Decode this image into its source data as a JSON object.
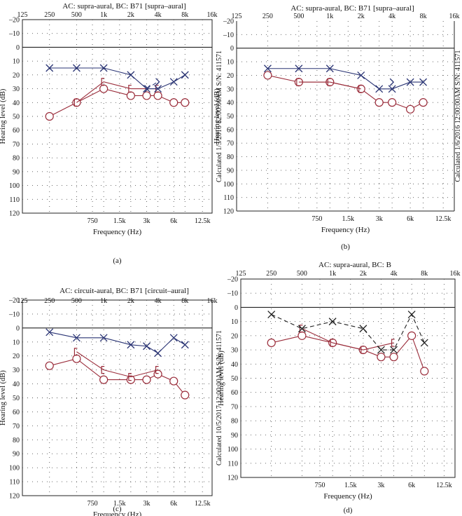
{
  "figure": {
    "colors": {
      "right_ear": "#2a3474",
      "left_ear": "#9a2c3a",
      "frame": "#222222",
      "grid": "#555555"
    }
  },
  "chart_data": [
    {
      "type": "line",
      "panel_label": "(a)",
      "title": "AC: supra-aural, BC: B71 [supra–aural]",
      "xlabel": "Frequency (Hz)",
      "ylabel": "Hearing level (dB)",
      "side_text": "Calculated 1/5/2016 12:00:00AM S/N: 411571",
      "x_scale": "log",
      "xlim": [
        125,
        16000
      ],
      "ylim": [
        -20,
        120
      ],
      "y_inverted": true,
      "top_ticks": [
        "125",
        "250",
        "500",
        "1k",
        "2k",
        "4k",
        "8k",
        "16k"
      ],
      "top_tick_values": [
        125,
        250,
        500,
        1000,
        2000,
        4000,
        8000,
        16000
      ],
      "bottom_ticks": [
        "750",
        "1.5k",
        "3k",
        "6k",
        "12.5k"
      ],
      "bottom_tick_values": [
        750,
        1500,
        3000,
        6000,
        12500
      ],
      "y_ticks": [
        -20,
        -10,
        0,
        10,
        20,
        30,
        40,
        50,
        60,
        70,
        80,
        90,
        100,
        110,
        120
      ],
      "series": [
        {
          "name": "Right air conduction",
          "marker": "circle",
          "dash": false,
          "color": "left_ear",
          "x": [
            250,
            500,
            1000,
            2000,
            3000,
            4000,
            6000,
            8000
          ],
          "y": [
            50,
            40,
            30,
            35,
            35,
            35,
            40,
            40
          ]
        },
        {
          "name": "Right bone conduction",
          "marker": "bracket",
          "dash": false,
          "color": "left_ear",
          "x": [
            500,
            1000,
            2000,
            4000
          ],
          "y": [
            40,
            25,
            30,
            30
          ]
        },
        {
          "name": "Left air conduction",
          "marker": "x",
          "dash": false,
          "color": "right_ear",
          "x": [
            250,
            500,
            1000,
            2000,
            3000,
            4000,
            6000,
            8000
          ],
          "y": [
            15,
            15,
            15,
            20,
            30,
            30,
            25,
            20
          ]
        },
        {
          "name": "Left bone conduction",
          "marker": "gt",
          "dash": true,
          "color": "right_ear",
          "x": [
            3000,
            4000
          ],
          "y": [
            30,
            25
          ]
        }
      ]
    },
    {
      "type": "line",
      "panel_label": "(b)",
      "title": "AC: supra-aural, BC: B71 [supra–aural]",
      "xlabel": "Frequency (Hz)",
      "ylabel": "Hearing level (dB)",
      "side_text": "Calculated 1/6/2016 12:00:00AM S/N: 411571",
      "x_scale": "log",
      "xlim": [
        125,
        16000
      ],
      "ylim": [
        -20,
        120
      ],
      "y_inverted": true,
      "top_ticks": [
        "125",
        "250",
        "500",
        "1k",
        "2k",
        "4k",
        "8k",
        "16k"
      ],
      "top_tick_values": [
        125,
        250,
        500,
        1000,
        2000,
        4000,
        8000,
        16000
      ],
      "bottom_ticks": [
        "750",
        "1.5k",
        "3k",
        "6k",
        "12.5k"
      ],
      "bottom_tick_values": [
        750,
        1500,
        3000,
        6000,
        12500
      ],
      "y_ticks": [
        -20,
        -10,
        0,
        10,
        20,
        30,
        40,
        50,
        60,
        70,
        80,
        90,
        100,
        110,
        120
      ],
      "series": [
        {
          "name": "Right air conduction",
          "marker": "circle",
          "dash": false,
          "color": "left_ear",
          "x": [
            250,
            500,
            1000,
            2000,
            3000,
            4000,
            6000,
            8000
          ],
          "y": [
            20,
            25,
            25,
            30,
            40,
            40,
            45,
            40
          ]
        },
        {
          "name": "Right bone conduction",
          "marker": "bracket",
          "dash": false,
          "color": "left_ear",
          "x": [
            500,
            1000,
            2000
          ],
          "y": [
            25,
            25,
            30
          ]
        },
        {
          "name": "Left air conduction",
          "marker": "x",
          "dash": false,
          "color": "right_ear",
          "x": [
            250,
            500,
            1000,
            2000,
            3000,
            4000,
            6000,
            8000
          ],
          "y": [
            15,
            15,
            15,
            20,
            30,
            30,
            25,
            25
          ]
        },
        {
          "name": "Left bone conduction",
          "marker": "gt",
          "dash": true,
          "color": "right_ear",
          "x": [
            4000
          ],
          "y": [
            25
          ]
        }
      ]
    },
    {
      "type": "line",
      "panel_label": "(c)",
      "title": "AC: circuit-aural, BC: B71 [circuit–aural]",
      "xlabel": "Frequency (Hz)",
      "ylabel": "Hearing level (dB)",
      "side_text": "Calculated 10/5/2017 12:00:00AM S/N: 411571",
      "x_scale": "log",
      "xlim": [
        125,
        16000
      ],
      "ylim": [
        -20,
        120
      ],
      "y_inverted": true,
      "top_ticks": [
        "125",
        "250",
        "500",
        "1k",
        "2k",
        "4k",
        "8k",
        "16k"
      ],
      "top_tick_values": [
        125,
        250,
        500,
        1000,
        2000,
        4000,
        8000,
        16000
      ],
      "bottom_ticks": [
        "750",
        "1.5k",
        "3k",
        "6k",
        "12.5k"
      ],
      "bottom_tick_values": [
        750,
        1500,
        3000,
        6000,
        12500
      ],
      "y_ticks": [
        -20,
        -10,
        0,
        10,
        20,
        30,
        40,
        50,
        60,
        70,
        80,
        90,
        100,
        110,
        120
      ],
      "series": [
        {
          "name": "Right air conduction",
          "marker": "circle",
          "dash": false,
          "color": "left_ear",
          "x": [
            250,
            500,
            1000,
            2000,
            3000,
            4000,
            6000,
            8000
          ],
          "y": [
            27,
            22,
            37,
            37,
            37,
            33,
            38,
            48
          ]
        },
        {
          "name": "Right bone conduction",
          "marker": "bracket",
          "dash": false,
          "color": "left_ear",
          "x": [
            500,
            1000,
            2000,
            4000
          ],
          "y": [
            17,
            30,
            35,
            30
          ]
        },
        {
          "name": "Left air conduction",
          "marker": "x",
          "dash": false,
          "color": "right_ear",
          "x": [
            250,
            500,
            1000,
            2000,
            3000,
            4000,
            6000,
            8000
          ],
          "y": [
            3,
            7,
            7,
            12,
            13,
            18,
            7,
            12
          ]
        },
        {
          "name": "Left bone conduction",
          "marker": "gt",
          "dash": true,
          "color": "right_ear",
          "x": [],
          "y": []
        }
      ]
    },
    {
      "type": "line",
      "panel_label": "(d)",
      "title": "AC: supra-aural, BC: B",
      "xlabel": "Frequency (Hz)",
      "ylabel": "Hearing level (dB)",
      "side_text": "",
      "x_scale": "log",
      "xlim": [
        125,
        16000
      ],
      "ylim": [
        -20,
        120
      ],
      "y_inverted": true,
      "top_ticks": [
        "125",
        "250",
        "500",
        "1k",
        "2k",
        "4k",
        "8k",
        "16k"
      ],
      "top_tick_values": [
        125,
        250,
        500,
        1000,
        2000,
        4000,
        8000,
        16000
      ],
      "bottom_ticks": [
        "750",
        "1.5k",
        "3k",
        "6k",
        "12.5k"
      ],
      "bottom_tick_values": [
        750,
        1500,
        3000,
        6000,
        12500
      ],
      "y_ticks": [
        -20,
        -10,
        0,
        10,
        20,
        30,
        40,
        50,
        60,
        70,
        80,
        90,
        100,
        110,
        120
      ],
      "series": [
        {
          "name": "Right air conduction",
          "marker": "circle",
          "dash": false,
          "color": "left_ear",
          "x": [
            250,
            500,
            1000,
            2000,
            3000,
            4000,
            6000,
            8000
          ],
          "y": [
            25,
            20,
            25,
            30,
            35,
            35,
            20,
            45
          ]
        },
        {
          "name": "Right bone conduction",
          "marker": "bracket",
          "dash": false,
          "color": "left_ear",
          "x": [
            500,
            1000,
            2000,
            4000
          ],
          "y": [
            15,
            25,
            30,
            25
          ]
        },
        {
          "name": "Left air conduction",
          "marker": "x",
          "dash": true,
          "color": "#222222",
          "x": [
            250,
            500,
            1000,
            2000,
            3000,
            4000,
            6000,
            8000
          ],
          "y": [
            5,
            15,
            10,
            15,
            30,
            30,
            5,
            25
          ]
        }
      ]
    }
  ]
}
